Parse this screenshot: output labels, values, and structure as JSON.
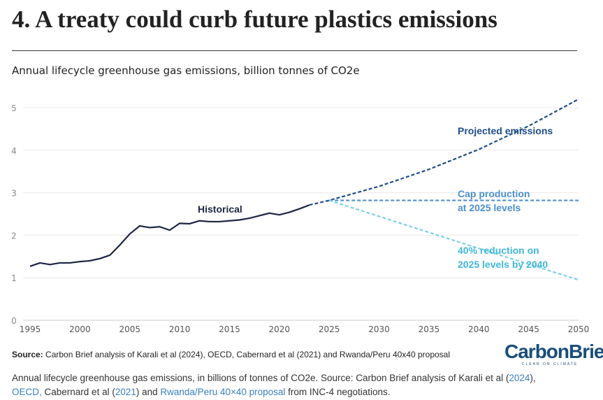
{
  "title": "4. A treaty could curb future plastics emissions",
  "chart_data": {
    "type": "line",
    "title": "Annual lifecycle greenhouse gas emissions, billion tonnes of CO2e",
    "xlim": [
      1995,
      2050
    ],
    "ylim": [
      0,
      5
    ],
    "x_ticks": [
      1995,
      2000,
      2005,
      2010,
      2015,
      2020,
      2025,
      2030,
      2035,
      2040,
      2045,
      2050
    ],
    "y_ticks": [
      0,
      1,
      2,
      3,
      4,
      5
    ],
    "grid": true,
    "series": [
      {
        "name": "Historical",
        "color": "#1c2541",
        "style": "solid",
        "x": [
          1995,
          1996,
          1997,
          1998,
          1999,
          2000,
          2001,
          2002,
          2003,
          2004,
          2005,
          2006,
          2007,
          2008,
          2009,
          2010,
          2011,
          2012,
          2013,
          2014,
          2015,
          2016,
          2017,
          2018,
          2019,
          2020,
          2021,
          2022,
          2023
        ],
        "y": [
          1.27,
          1.35,
          1.31,
          1.35,
          1.35,
          1.38,
          1.4,
          1.45,
          1.53,
          1.77,
          2.03,
          2.22,
          2.18,
          2.2,
          2.12,
          2.28,
          2.27,
          2.34,
          2.32,
          2.32,
          2.34,
          2.36,
          2.4,
          2.46,
          2.52,
          2.48,
          2.54,
          2.62,
          2.71
        ]
      },
      {
        "name": "Projected emissions",
        "color": "#1f4e89",
        "style": "dashed",
        "x": [
          2023,
          2025,
          2030,
          2035,
          2040,
          2045,
          2050
        ],
        "y": [
          2.71,
          2.82,
          3.15,
          3.55,
          4.02,
          4.57,
          5.2
        ]
      },
      {
        "name": "Cap production at 2025 levels",
        "label_lines": [
          "Cap production",
          "at 2025 levels"
        ],
        "color": "#4a90d0",
        "style": "dashed",
        "x": [
          2025,
          2050
        ],
        "y": [
          2.82,
          2.82
        ]
      },
      {
        "name": "40% reduction on 2025 levels by 2040",
        "label_lines": [
          "40% reduction on",
          "2025 levels by 2040"
        ],
        "color": "#7fd0ea",
        "style": "dashed",
        "x": [
          2025,
          2040,
          2050
        ],
        "y": [
          2.82,
          1.69,
          0.95
        ]
      }
    ]
  },
  "source": {
    "label": "Source:",
    "text": " Carbon Brief analysis of Karali et al (2024), OECD, Cabernard et al (2021) and Rwanda/Peru 40x40 proposal"
  },
  "logo": {
    "word": "CarbonBrief",
    "tagline": "CLEAR ON CLIMATE"
  },
  "caption": {
    "t1": "Annual lifecycle greenhouse gas emissions, in billions of tonnes of CO2e. Source: Carbon Brief analysis of Karali et al (",
    "l1": "2024",
    "t2": "), ",
    "l2": "OECD,",
    "t3": " Cabernard et al (",
    "l3": "2021",
    "t4": ")  and ",
    "l4": "Rwanda/Peru 40×40 proposal",
    "t5": " from INC-4 negotiations."
  }
}
